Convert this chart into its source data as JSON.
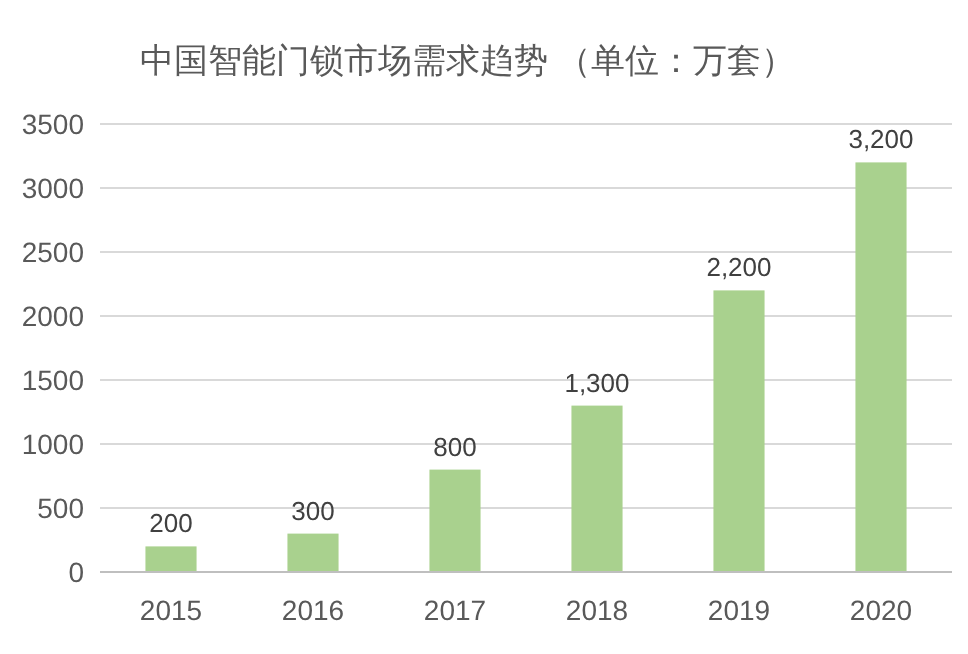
{
  "chart_data": {
    "type": "bar",
    "title": "中国智能门锁市场需求趋势 （单位：万套）",
    "categories": [
      "2015",
      "2016",
      "2017",
      "2018",
      "2019",
      "2020"
    ],
    "values": [
      200,
      300,
      800,
      1300,
      2200,
      3200
    ],
    "value_labels": [
      "200",
      "300",
      "800",
      "1,300",
      "2,200",
      "3,200"
    ],
    "color": "#a9d18e",
    "ylim": [
      0,
      3500
    ],
    "yticks": [
      0,
      500,
      1000,
      1500,
      2000,
      2500,
      3000,
      3500
    ],
    "grid": "y"
  }
}
